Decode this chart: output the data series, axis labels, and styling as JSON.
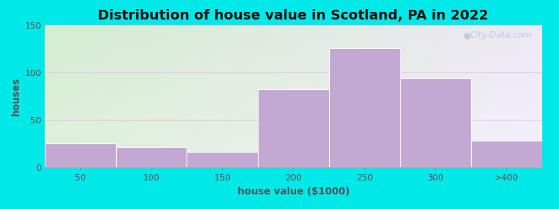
{
  "title": "Distribution of house value in Scotland, PA in 2022",
  "xlabel": "house value ($1000)",
  "ylabel": "houses",
  "bar_labels": [
    "50",
    "100",
    "150",
    "200",
    "250",
    "300",
    ">400"
  ],
  "bar_values": [
    25,
    21,
    16,
    82,
    126,
    94,
    28
  ],
  "bar_color": "#c4a8d4",
  "bar_edge_color": "#c4a8d4",
  "ylim": [
    0,
    150
  ],
  "yticks": [
    0,
    50,
    100,
    150
  ],
  "background_outer": "#00e8e8",
  "bg_color_topleft": "#d4edd0",
  "bg_color_topright": "#eee8f4",
  "bg_color_bottomleft": "#e8f4e8",
  "bg_color_bottomright": "#f8f4fc",
  "watermark_text": "City-Data.com",
  "title_fontsize": 14,
  "axis_label_fontsize": 10,
  "tick_fontsize": 9,
  "grid_color": "#e0c8e0",
  "grid_linewidth": 0.8
}
